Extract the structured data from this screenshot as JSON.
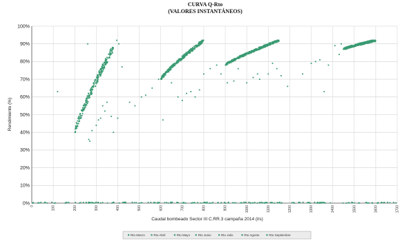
{
  "chart_data": {
    "type": "scatter",
    "title": "CURVA Q-Rto",
    "subtitle": "(VALORES INSTANTÁNEOS)",
    "xlabel": "Caudal bombeado Sector III C.RR.3 campaña 2014 (l/s)",
    "ylabel": "Rendimiento (%)",
    "xlim": [
      0,
      1700
    ],
    "ylim": [
      0,
      100
    ],
    "y_ticks": [
      "0%",
      "10%",
      "20%",
      "30%",
      "40%",
      "50%",
      "60%",
      "70%",
      "80%",
      "90%",
      "100%"
    ],
    "x_ticks": [
      "0",
      "100",
      "200",
      "300",
      "400",
      "500",
      "600",
      "700",
      "800",
      "900",
      "1000",
      "1100",
      "1200",
      "1300",
      "1400",
      "1500",
      "1600",
      "1700"
    ],
    "grid": true,
    "legend_position": "bottom",
    "marker_color": "#3a9a72",
    "series": [
      {
        "name": "Rto Marzo"
      },
      {
        "name": "Rto Abril"
      },
      {
        "name": "Rto Mayo"
      },
      {
        "name": "Rto Junio"
      },
      {
        "name": "Rto Julio"
      },
      {
        "name": "Rto Agosto"
      },
      {
        "name": "Rto Septiembre"
      }
    ],
    "clusters": [
      {
        "x": [
          200,
          380
        ],
        "y": [
          40,
          88
        ],
        "count": 260
      },
      {
        "x": [
          600,
          800
        ],
        "y": [
          70,
          92
        ],
        "count": 320
      },
      {
        "x": [
          900,
          1150
        ],
        "y": [
          78,
          92
        ],
        "count": 360
      },
      {
        "x": [
          1450,
          1600
        ],
        "y": [
          87,
          92
        ],
        "count": 380
      },
      {
        "x": [
          0,
          1700
        ],
        "y": [
          0,
          0.5
        ],
        "count": 200
      }
    ],
    "scattered_points": [
      [
        120,
        63
      ],
      [
        260,
        90
      ],
      [
        270,
        35
      ],
      [
        265,
        36
      ],
      [
        280,
        41
      ],
      [
        300,
        44
      ],
      [
        310,
        47
      ],
      [
        320,
        48
      ],
      [
        330,
        55
      ],
      [
        340,
        52
      ],
      [
        350,
        57
      ],
      [
        370,
        49
      ],
      [
        380,
        40
      ],
      [
        395,
        92
      ],
      [
        405,
        90
      ],
      [
        400,
        48
      ],
      [
        420,
        77
      ],
      [
        455,
        57
      ],
      [
        480,
        55
      ],
      [
        510,
        60
      ],
      [
        530,
        61
      ],
      [
        560,
        65
      ],
      [
        590,
        70
      ],
      [
        610,
        47
      ],
      [
        620,
        73
      ],
      [
        650,
        68
      ],
      [
        680,
        60
      ],
      [
        700,
        58
      ],
      [
        720,
        62
      ],
      [
        740,
        63
      ],
      [
        760,
        60
      ],
      [
        780,
        64
      ],
      [
        800,
        73
      ],
      [
        830,
        76
      ],
      [
        860,
        78
      ],
      [
        880,
        73
      ],
      [
        910,
        68
      ],
      [
        940,
        69
      ],
      [
        960,
        76
      ],
      [
        1000,
        68
      ],
      [
        1030,
        71
      ],
      [
        1050,
        73
      ],
      [
        1060,
        70
      ],
      [
        1100,
        73
      ],
      [
        1120,
        79
      ],
      [
        1140,
        76
      ],
      [
        1160,
        72
      ],
      [
        1190,
        66
      ],
      [
        1260,
        73
      ],
      [
        1300,
        79
      ],
      [
        1320,
        80
      ],
      [
        1340,
        81
      ],
      [
        1360,
        63
      ],
      [
        1380,
        78
      ],
      [
        1410,
        89
      ],
      [
        1430,
        84
      ],
      [
        1440,
        90
      ],
      [
        1460,
        87
      ]
    ]
  }
}
